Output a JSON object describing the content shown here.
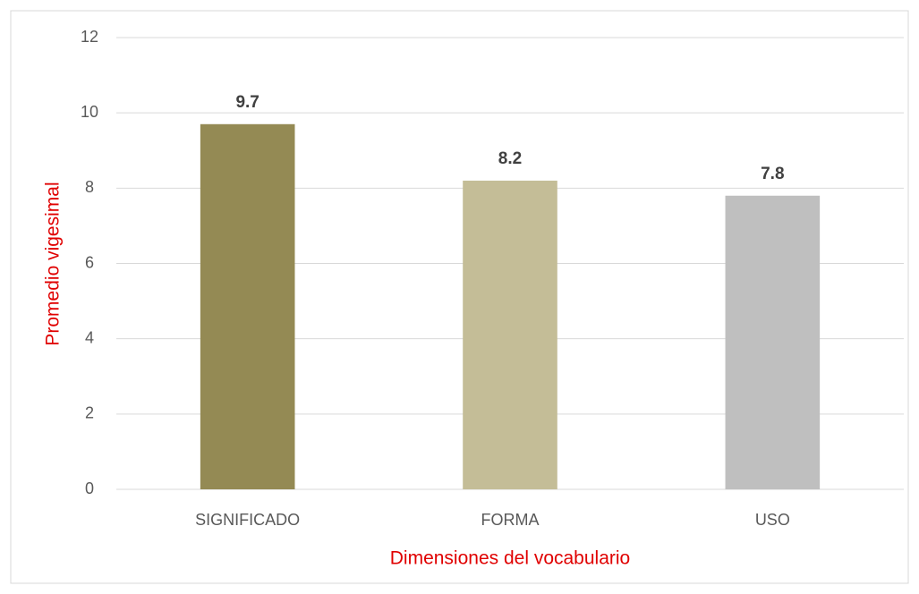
{
  "chart_data": {
    "type": "bar",
    "categories": [
      "SIGNIFICADO",
      "FORMA",
      "USO"
    ],
    "values": [
      9.7,
      8.2,
      7.8
    ],
    "colors": [
      "#948a54",
      "#c4bd97",
      "#bfbfbf"
    ],
    "xlabel": "Dimensiones del vocabulario",
    "ylabel": "Promedio vigesimal",
    "ylim": [
      0,
      12
    ],
    "yticks": [
      0,
      2,
      4,
      6,
      8,
      10,
      12
    ],
    "grid": true
  }
}
